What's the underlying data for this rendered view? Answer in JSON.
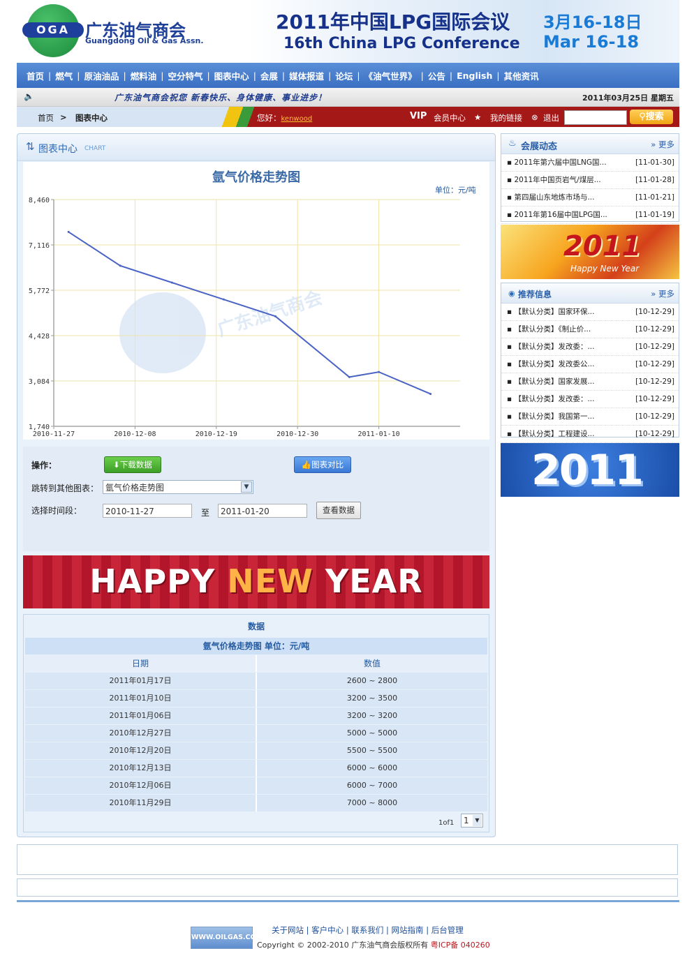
{
  "header": {
    "logo_abbr": "OGA",
    "logo_cn": "广东油气商会",
    "logo_en": "Guangdong Oil & Gas Assn.",
    "conference_cn": "2011年中国LPG国际会议",
    "conference_en": "16th China LPG Conference",
    "date_cn": "3月16-18日",
    "date_en": "Mar  16-18"
  },
  "nav": {
    "items": [
      "首页",
      "燃气",
      "原油油品",
      "燃料油",
      "空分特气",
      "图表中心",
      "会展",
      "媒体报道",
      "论坛",
      "《油气世界》",
      "公告",
      "English",
      "其他资讯"
    ]
  },
  "notice": {
    "text": "广东油气商会祝您 新春快乐、身体健康、事业进步！",
    "date": "2011年03月25日  星期五"
  },
  "crumb": {
    "home": "首页",
    "arrow": ">",
    "current": "图表中心",
    "greet": "您好：",
    "user": "kenwood",
    "vip": "VIP",
    "member_center": "会员中心",
    "my_links": "我的链接",
    "logout": "退出",
    "search_label": "搜索"
  },
  "main": {
    "title": "图表中心",
    "title_en": "CHART"
  },
  "chart_data": {
    "type": "line",
    "title": "氩气价格走势图",
    "unit": "单位：元/吨",
    "x": [
      "2010-11-29",
      "2010-12-06",
      "2010-12-13",
      "2010-12-20",
      "2010-12-27",
      "2011-01-06",
      "2011-01-10",
      "2011-01-17"
    ],
    "y": [
      7500,
      6500,
      6000,
      5500,
      5000,
      3200,
      3350,
      2700
    ],
    "x_ticks": [
      "2010-11-27",
      "2010-12-08",
      "2010-12-19",
      "2010-12-30",
      "2011-01-10"
    ],
    "y_ticks": [
      "1,740",
      "3,084",
      "4,428",
      "5,772",
      "7,116",
      "8,460"
    ],
    "ylim": [
      1740,
      8460
    ],
    "xlim": [
      "2010-11-27",
      "2011-01-21"
    ],
    "grid": true,
    "line_color": "#4a63c4",
    "grid_color": "#efe3a8"
  },
  "ops": {
    "label": "操作：",
    "download": "下载数据",
    "compare": "图表对比",
    "jump_label": "跳转到其他图表：",
    "jump_value": "氩气价格走势图",
    "period_label": "选择时间段：",
    "start": "2010-11-27",
    "to": "至",
    "end": "2011-01-20",
    "view": "查看数据"
  },
  "banner": {
    "happy": "HAPPY ",
    "new": "NEW",
    "year": " YEAR"
  },
  "data_table": {
    "title": "数据",
    "subtitle": "氩气价格走势图    单位：元/吨",
    "col_date": "日期",
    "col_value": "数值",
    "rows": [
      {
        "date": "2011年01月17日",
        "value": "2600 ~ 2800"
      },
      {
        "date": "2011年01月10日",
        "value": "3200 ~ 3500"
      },
      {
        "date": "2011年01月06日",
        "value": "3200 ~ 3200"
      },
      {
        "date": "2010年12月27日",
        "value": "5000 ~ 5000"
      },
      {
        "date": "2010年12月20日",
        "value": "5500 ~ 5500"
      },
      {
        "date": "2010年12月13日",
        "value": "6000 ~ 6000"
      },
      {
        "date": "2010年12月06日",
        "value": "6000 ~ 7000"
      },
      {
        "date": "2010年11月29日",
        "value": "7000 ~ 8000"
      }
    ],
    "pager_text": "1of1",
    "pager_value": "1"
  },
  "side_exhibition": {
    "title": "会展动态",
    "more": "更多",
    "items": [
      {
        "title": "▪ 2011年第六届中国LNG国...",
        "date": "[11-01-30]"
      },
      {
        "title": "▪ 2011年中国页岩气/煤层...",
        "date": "[11-01-28]"
      },
      {
        "title": "▪ 第四届山东地炼市场与...",
        "date": "[11-01-21]"
      },
      {
        "title": "▪ 2011年第16届中国LPG国...",
        "date": "[11-01-19]"
      }
    ]
  },
  "side_banner_1": {
    "big": "2011",
    "sub": "Happy New Year"
  },
  "side_recommend": {
    "title": "推荐信息",
    "more": "更多",
    "items": [
      {
        "title": "▪ 【默认分类】国家环保...",
        "date": "[10-12-29]"
      },
      {
        "title": "▪ 【默认分类】《制止价...",
        "date": "[10-12-29]"
      },
      {
        "title": "▪ 【默认分类】发改委：...",
        "date": "[10-12-29]"
      },
      {
        "title": "▪ 【默认分类】发改委公...",
        "date": "[10-12-29]"
      },
      {
        "title": "▪ 【默认分类】国家发展...",
        "date": "[10-12-29]"
      },
      {
        "title": "▪ 【默认分类】发改委：...",
        "date": "[10-12-29]"
      },
      {
        "title": "▪ 【默认分类】我国第一...",
        "date": "[10-12-29]"
      },
      {
        "title": "▪ 【默认分类】工程建设...",
        "date": "[10-12-29]"
      }
    ]
  },
  "side_banner_2": {
    "big": "2011"
  },
  "footer": {
    "logo": "WWW.OILGAS.CC",
    "links": "关于网站  |  客户中心  |  联系我们  |  网站指南  |  后台管理",
    "copyright": "Copyright © 2002-2010  广东油气商会版权所有  ",
    "icp": "粤ICP备 040260"
  }
}
